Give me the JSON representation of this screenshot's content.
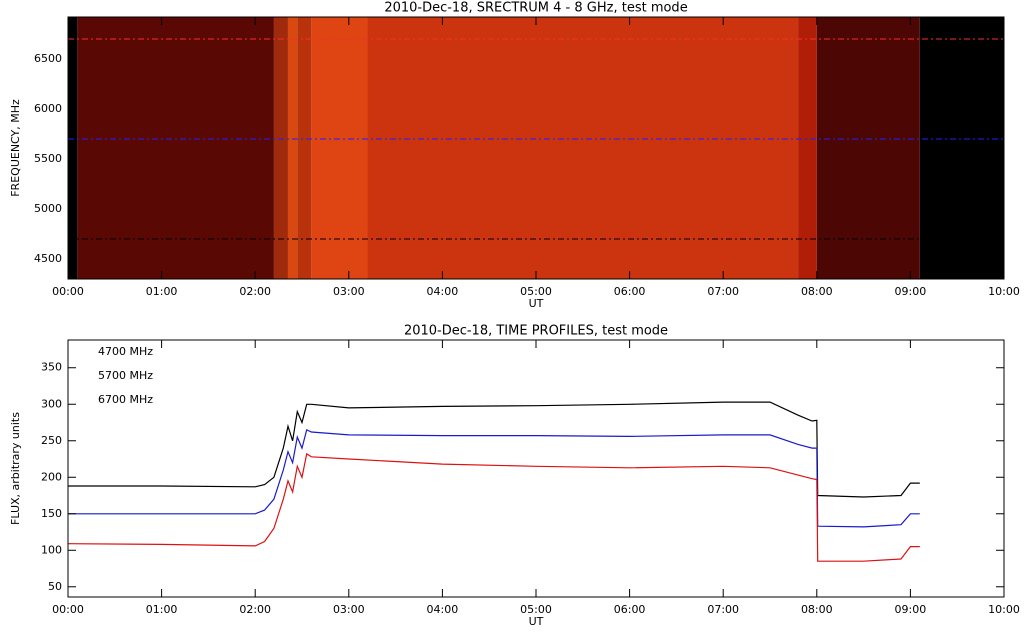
{
  "chart_data": [
    {
      "type": "heatmap",
      "title": "2010-Dec-18,  SRECTRUM 4 - 8 GHz,  test mode",
      "x_label": "UT",
      "y_label": "FREQUENCY, MHz",
      "xlim": [
        0,
        10
      ],
      "ylim": [
        4300,
        6920
      ],
      "xticks": [
        {
          "value": 0,
          "label": "00:00"
        },
        {
          "value": 1,
          "label": "01:00"
        },
        {
          "value": 2,
          "label": "02:00"
        },
        {
          "value": 3,
          "label": "03:00"
        },
        {
          "value": 4,
          "label": "04:00"
        },
        {
          "value": 5,
          "label": "05:00"
        },
        {
          "value": 6,
          "label": "06:00"
        },
        {
          "value": 7,
          "label": "07:00"
        },
        {
          "value": 8,
          "label": "08:00"
        },
        {
          "value": 9,
          "label": "09:00"
        },
        {
          "value": 10,
          "label": "10:00"
        }
      ],
      "yticks": [
        4500,
        5000,
        5500,
        6000,
        6500
      ],
      "segments": [
        {
          "start": 0,
          "end": 0.1,
          "color": "#000000"
        },
        {
          "start": 0.1,
          "end": 2.2,
          "color": "#5a0804"
        },
        {
          "start": 2.2,
          "end": 2.35,
          "color": "#a02a0c"
        },
        {
          "start": 2.35,
          "end": 2.45,
          "color": "#d8480f"
        },
        {
          "start": 2.45,
          "end": 2.6,
          "color": "#b8330c"
        },
        {
          "start": 2.6,
          "end": 3.2,
          "color": "#de4512"
        },
        {
          "start": 3.2,
          "end": 7.8,
          "color": "#cc3410"
        },
        {
          "start": 7.8,
          "end": 8.0,
          "color": "#b01e08"
        },
        {
          "start": 8.0,
          "end": 9.1,
          "color": "#4c0704"
        },
        {
          "start": 9.1,
          "end": 10,
          "color": "#000000"
        }
      ],
      "markers": [
        {
          "value": 6700,
          "color": "#ff2a2a"
        },
        {
          "value": 5700,
          "color": "#2020ff"
        },
        {
          "value": 4700,
          "color": "#000000"
        }
      ]
    },
    {
      "type": "line",
      "title": "2010-Dec-18,  TIME PROFILES,  test mode",
      "x_label": "UT",
      "y_label": "FLUX, arbitrary units",
      "xlim": [
        0,
        10
      ],
      "ylim": [
        36,
        388
      ],
      "xticks": [
        {
          "value": 0,
          "label": "00:00"
        },
        {
          "value": 1,
          "label": "01:00"
        },
        {
          "value": 2,
          "label": "02:00"
        },
        {
          "value": 3,
          "label": "03:00"
        },
        {
          "value": 4,
          "label": "04:00"
        },
        {
          "value": 5,
          "label": "05:00"
        },
        {
          "value": 6,
          "label": "06:00"
        },
        {
          "value": 7,
          "label": "07:00"
        },
        {
          "value": 8,
          "label": "08:00"
        },
        {
          "value": 9,
          "label": "09:00"
        },
        {
          "value": 10,
          "label": "10:00"
        }
      ],
      "yticks": [
        50,
        100,
        150,
        200,
        250,
        300,
        350
      ],
      "x": [
        0,
        1,
        2.0,
        2.1,
        2.2,
        2.3,
        2.35,
        2.4,
        2.45,
        2.5,
        2.55,
        2.6,
        3,
        4,
        5,
        6,
        7,
        7.5,
        7.8,
        7.95,
        8.0,
        8.01,
        8.5,
        8.9,
        9.0,
        9.1
      ],
      "series": [
        {
          "name": "4700 MHz",
          "color": "#000000",
          "values": [
            188,
            188,
            187,
            190,
            200,
            240,
            270,
            250,
            290,
            275,
            300,
            300,
            295,
            297,
            298,
            300,
            303,
            303,
            285,
            277,
            278,
            175,
            173,
            175,
            192,
            192
          ]
        },
        {
          "name": "5700 MHz",
          "color": "#1a1acc",
          "values": [
            150,
            150,
            150,
            155,
            170,
            210,
            235,
            220,
            255,
            240,
            265,
            262,
            258,
            257,
            257,
            256,
            258,
            258,
            245,
            240,
            240,
            133,
            132,
            135,
            150,
            150
          ]
        },
        {
          "name": "6700 MHz",
          "color": "#dd1111",
          "values": [
            109,
            108,
            106,
            112,
            130,
            170,
            195,
            180,
            215,
            200,
            232,
            228,
            225,
            218,
            215,
            213,
            215,
            213,
            203,
            198,
            197,
            85,
            85,
            88,
            105,
            105
          ]
        }
      ]
    }
  ]
}
